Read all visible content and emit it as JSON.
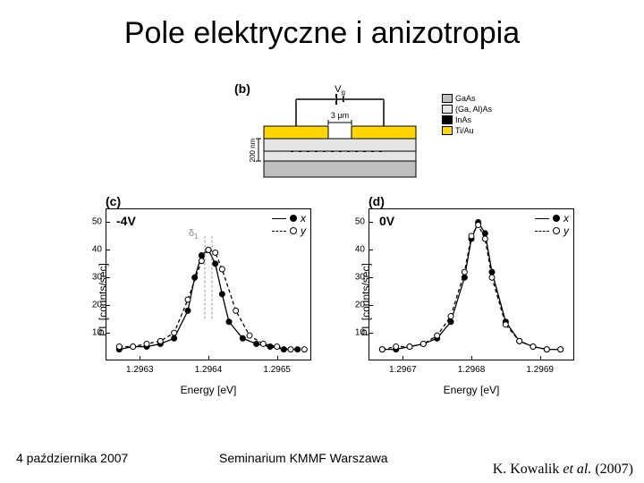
{
  "title": "Pole elektryczne i anizotropia",
  "footer": {
    "date": "4 października 2007",
    "venue": "Seminarium KMMF Warszawa",
    "citation_author": "K. Kowalik",
    "citation_etal": "et al.",
    "citation_year": "(2007)"
  },
  "schematic": {
    "panel_label": "(b)",
    "vg_label": "V",
    "vg_sub": "g",
    "gap_label": "3 µm",
    "height_label": "200 nm",
    "materials": [
      {
        "name": "GaAs",
        "color": "#bfbfbf"
      },
      {
        "name": "(Ga, Al)As",
        "color": "#e6e6e6"
      },
      {
        "name": "InAs",
        "color": "#000000"
      },
      {
        "name": "Ti/Au",
        "color": "#ffd700"
      }
    ],
    "colors": {
      "substrate": "#bfbfbf",
      "barrier": "#e6e6e6",
      "contact": "#ffd700",
      "qd": "#000000"
    }
  },
  "legend_series": [
    {
      "name": "x",
      "marker": "filled",
      "line": "solid",
      "label": "x"
    },
    {
      "name": "y",
      "marker": "open",
      "line": "dashed",
      "label": "y"
    }
  ],
  "charts": [
    {
      "panel_label": "(c)",
      "voltage": "-4V",
      "delta_label": "δ",
      "delta_sub": "1",
      "ylabel": "PL [counts/sec]",
      "xlabel": "Energy [eV]",
      "ylim": [
        0,
        55
      ],
      "yticks": [
        10,
        20,
        30,
        40,
        50
      ],
      "xlim": [
        1.29625,
        1.29655
      ],
      "xticks": [
        1.2963,
        1.2964,
        1.2965
      ],
      "background": "#ffffff",
      "axis_color": "#000000",
      "series": {
        "x": {
          "color": "#000000",
          "marker": "filled",
          "line": "solid",
          "points": [
            [
              1.29627,
              4
            ],
            [
              1.29629,
              5
            ],
            [
              1.29631,
              5
            ],
            [
              1.29633,
              6
            ],
            [
              1.29635,
              8
            ],
            [
              1.29637,
              18
            ],
            [
              1.29638,
              30
            ],
            [
              1.29639,
              38
            ],
            [
              1.2964,
              40
            ],
            [
              1.29641,
              35
            ],
            [
              1.29642,
              24
            ],
            [
              1.29643,
              14
            ],
            [
              1.29645,
              8
            ],
            [
              1.29647,
              6
            ],
            [
              1.29649,
              5
            ],
            [
              1.29651,
              4
            ],
            [
              1.29653,
              4
            ]
          ]
        },
        "y": {
          "color": "#000000",
          "marker": "open",
          "line": "dashed",
          "points": [
            [
              1.29627,
              5
            ],
            [
              1.29629,
              5
            ],
            [
              1.29631,
              6
            ],
            [
              1.29633,
              7
            ],
            [
              1.29635,
              10
            ],
            [
              1.29637,
              22
            ],
            [
              1.29639,
              36
            ],
            [
              1.2964,
              40
            ],
            [
              1.29641,
              39
            ],
            [
              1.29642,
              33
            ],
            [
              1.29644,
              18
            ],
            [
              1.29646,
              9
            ],
            [
              1.29648,
              6
            ],
            [
              1.2965,
              5
            ],
            [
              1.29652,
              4
            ],
            [
              1.29654,
              4
            ]
          ]
        }
      }
    },
    {
      "panel_label": "(d)",
      "voltage": "0V",
      "ylabel": "PL [counts/sec]",
      "xlabel": "Energy [eV]",
      "ylim": [
        0,
        55
      ],
      "yticks": [
        10,
        20,
        30,
        40,
        50
      ],
      "xlim": [
        1.29665,
        1.29695
      ],
      "xticks": [
        1.2967,
        1.2968,
        1.2969
      ],
      "background": "#ffffff",
      "axis_color": "#000000",
      "series": {
        "x": {
          "color": "#000000",
          "marker": "filled",
          "line": "solid",
          "points": [
            [
              1.29667,
              4
            ],
            [
              1.29669,
              4
            ],
            [
              1.29671,
              5
            ],
            [
              1.29673,
              6
            ],
            [
              1.29675,
              8
            ],
            [
              1.29677,
              14
            ],
            [
              1.29679,
              30
            ],
            [
              1.2968,
              44
            ],
            [
              1.29681,
              50
            ],
            [
              1.29682,
              46
            ],
            [
              1.29683,
              32
            ],
            [
              1.29685,
              14
            ],
            [
              1.29687,
              7
            ],
            [
              1.29689,
              5
            ],
            [
              1.29691,
              4
            ],
            [
              1.29693,
              4
            ]
          ]
        },
        "y": {
          "color": "#000000",
          "marker": "open",
          "line": "dashed",
          "points": [
            [
              1.29667,
              4
            ],
            [
              1.29669,
              5
            ],
            [
              1.29671,
              5
            ],
            [
              1.29673,
              6
            ],
            [
              1.29675,
              9
            ],
            [
              1.29677,
              16
            ],
            [
              1.29679,
              32
            ],
            [
              1.2968,
              45
            ],
            [
              1.29681,
              49
            ],
            [
              1.29682,
              44
            ],
            [
              1.29683,
              30
            ],
            [
              1.29685,
              13
            ],
            [
              1.29687,
              7
            ],
            [
              1.29689,
              5
            ],
            [
              1.29691,
              4
            ],
            [
              1.29693,
              4
            ]
          ]
        }
      }
    }
  ]
}
